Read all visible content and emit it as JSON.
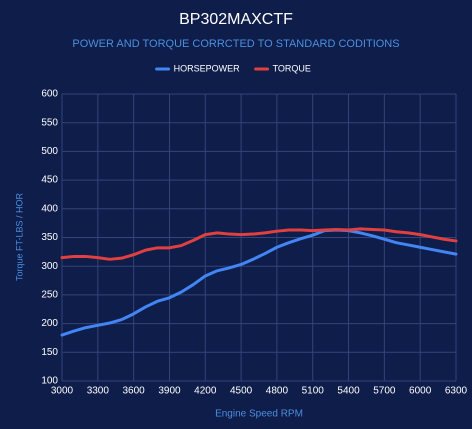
{
  "chart_data": {
    "type": "line",
    "title": "BP302MAXCTF",
    "subtitle": "POWER AND TORQUE CORRCTED TO STANDARD CODITIONS",
    "x_label": "Engine Speed RPM",
    "y_label": "Torque FT-LBS / HOR",
    "x": [
      3000,
      3100,
      3200,
      3300,
      3400,
      3500,
      3600,
      3700,
      3800,
      3900,
      4000,
      4100,
      4200,
      4300,
      4400,
      4500,
      4600,
      4700,
      4800,
      4900,
      5000,
      5100,
      5200,
      5300,
      5400,
      5500,
      5600,
      5700,
      5800,
      5900,
      6000,
      6100,
      6200,
      6300
    ],
    "series": [
      {
        "name": "HORSEPOWER",
        "color": "#4285f4",
        "values": [
          180,
          187,
          193,
          197,
          201,
          207,
          217,
          229,
          239,
          245,
          255,
          268,
          283,
          292,
          297,
          303,
          312,
          322,
          333,
          341,
          348,
          354,
          362,
          363,
          362,
          358,
          353,
          347,
          341,
          337,
          333,
          329,
          325,
          321
        ]
      },
      {
        "name": "TORQUE",
        "color": "#e0403f",
        "values": [
          315,
          317,
          317,
          315,
          312,
          314,
          320,
          328,
          332,
          332,
          336,
          345,
          355,
          358,
          356,
          355,
          356,
          358,
          361,
          363,
          363,
          362,
          363,
          364,
          363,
          365,
          364,
          363,
          360,
          358,
          355,
          351,
          347,
          344
        ]
      }
    ],
    "xlim": [
      3000,
      6300
    ],
    "xticks": [
      3000,
      3300,
      3600,
      3900,
      4200,
      4500,
      4800,
      5100,
      5400,
      5700,
      6000,
      6300
    ],
    "ylim": [
      100,
      600
    ],
    "yticks": [
      100,
      150,
      200,
      250,
      300,
      350,
      400,
      450,
      500,
      550,
      600
    ],
    "grid": true,
    "legend": "top"
  }
}
